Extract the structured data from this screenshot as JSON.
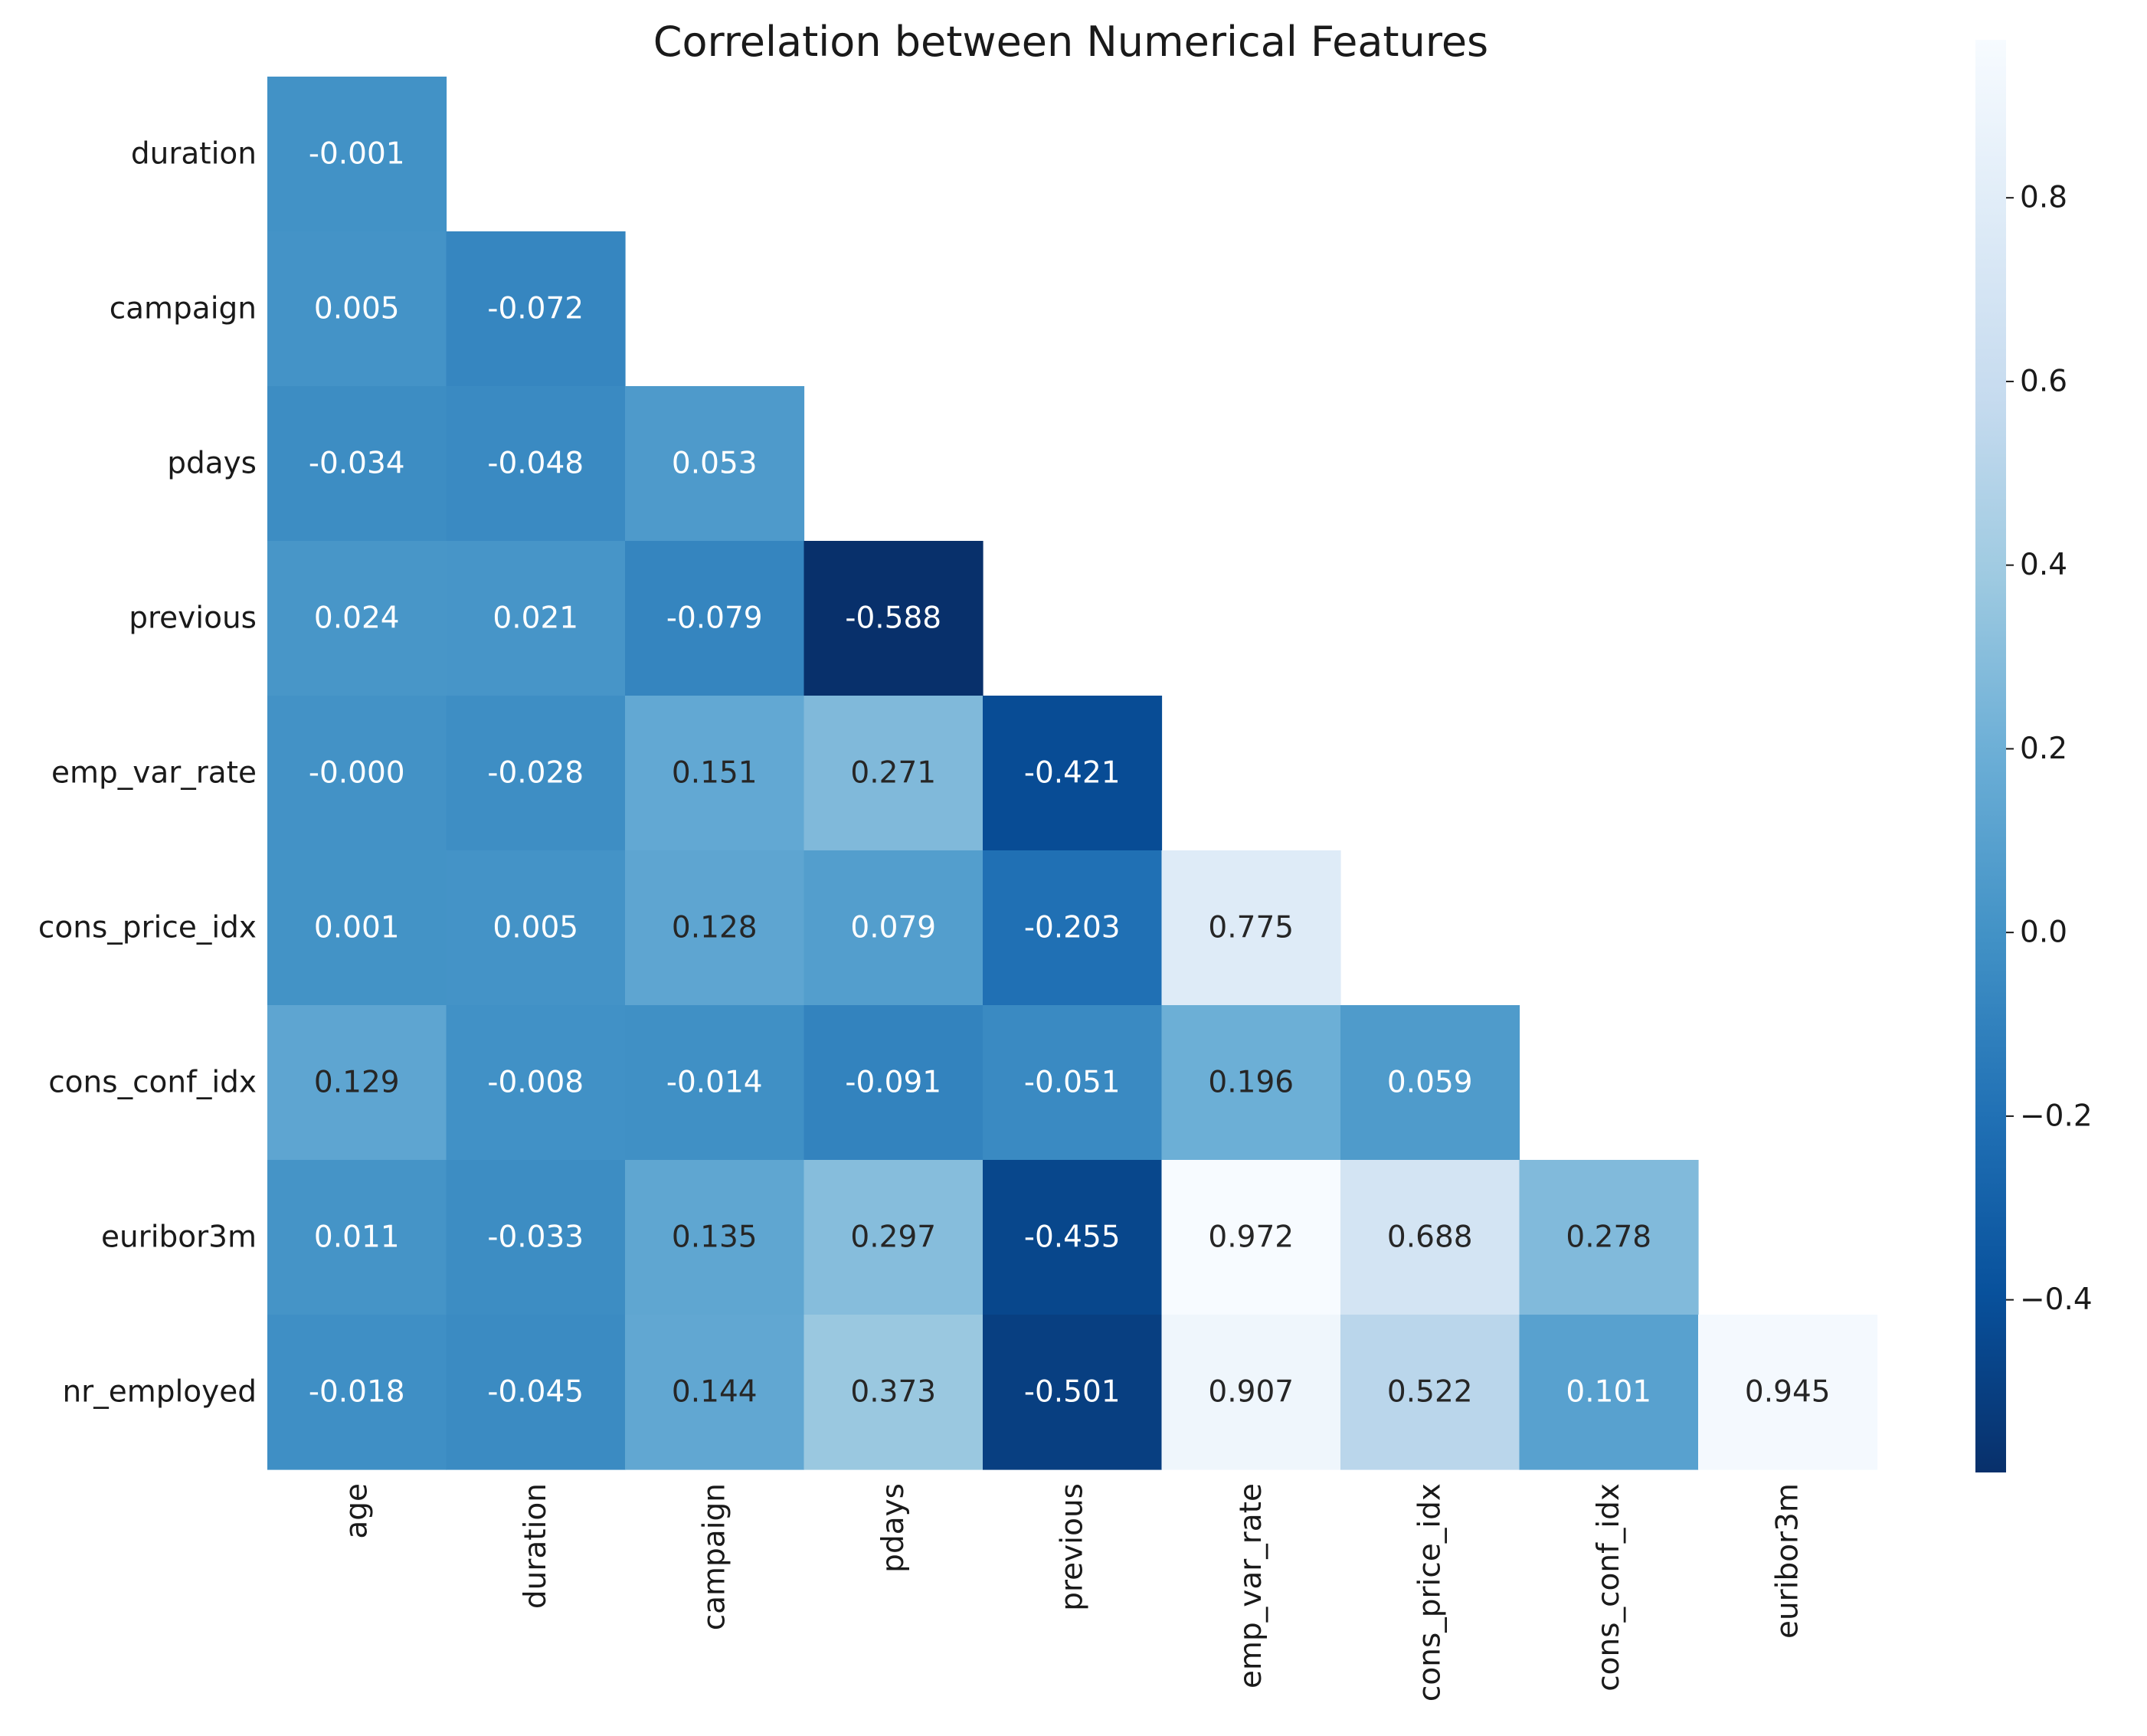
{
  "chart_data": {
    "type": "heatmap",
    "title": "Correlation between Numerical Features",
    "row_labels": [
      "duration",
      "campaign",
      "pdays",
      "previous",
      "emp_var_rate",
      "cons_price_idx",
      "cons_conf_idx",
      "euribor3m",
      "nr_employed"
    ],
    "col_labels": [
      "age",
      "duration",
      "campaign",
      "pdays",
      "previous",
      "emp_var_rate",
      "cons_price_idx",
      "cons_conf_idx",
      "euribor3m"
    ],
    "values": [
      [
        -0.001
      ],
      [
        0.005,
        -0.072
      ],
      [
        -0.034,
        -0.048,
        0.053
      ],
      [
        0.024,
        0.021,
        -0.079,
        -0.588
      ],
      [
        -0.0,
        -0.028,
        0.151,
        0.271,
        -0.421
      ],
      [
        0.001,
        0.005,
        0.128,
        0.079,
        -0.203,
        0.775
      ],
      [
        0.129,
        -0.008,
        -0.014,
        -0.091,
        -0.051,
        0.196,
        0.059
      ],
      [
        0.011,
        -0.033,
        0.135,
        0.297,
        -0.455,
        0.972,
        0.688,
        0.278
      ],
      [
        -0.018,
        -0.045,
        0.144,
        0.373,
        -0.501,
        0.907,
        0.522,
        0.101,
        0.945
      ]
    ],
    "value_labels": [
      [
        "-0.001"
      ],
      [
        "0.005",
        "-0.072"
      ],
      [
        "-0.034",
        "-0.048",
        "0.053"
      ],
      [
        "0.024",
        "0.021",
        "-0.079",
        "-0.588"
      ],
      [
        "-0.000",
        "-0.028",
        "0.151",
        "0.271",
        "-0.421"
      ],
      [
        "0.001",
        "0.005",
        "0.128",
        "0.079",
        "-0.203",
        "0.775"
      ],
      [
        "0.129",
        "-0.008",
        "-0.014",
        "-0.091",
        "-0.051",
        "0.196",
        "0.059"
      ],
      [
        "0.011",
        "-0.033",
        "0.135",
        "0.297",
        "-0.455",
        "0.972",
        "0.688",
        "0.278"
      ],
      [
        "-0.018",
        "-0.045",
        "0.144",
        "0.373",
        "-0.501",
        "0.907",
        "0.522",
        "0.101",
        "0.945"
      ]
    ],
    "mask": "upper-triangle",
    "colormap": "Blues_r",
    "vmin": -0.588,
    "vmax": 0.972,
    "colorbar": {
      "ticks": [
        0.8,
        0.6,
        0.4,
        0.2,
        0.0,
        -0.2,
        -0.4
      ],
      "tick_labels": [
        "0.8",
        "0.6",
        "0.4",
        "0.2",
        "0.0",
        "−0.2",
        "−0.4"
      ],
      "placement": "right"
    },
    "grid": false,
    "legend": "none"
  }
}
